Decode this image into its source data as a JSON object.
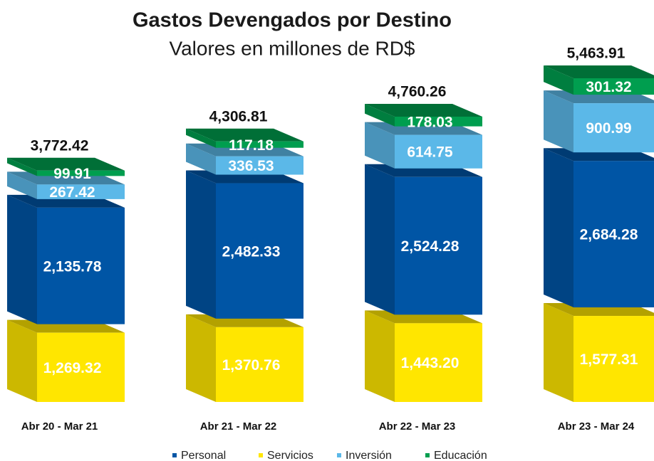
{
  "chart_data": {
    "type": "stacked-bar-3d",
    "title": "Gastos Devengados por Destino",
    "subtitle": "Valores en millones de RD$",
    "categories": [
      "Abr 20 - Mar 21",
      "Abr 21 - Mar 22",
      "Abr 22 - Mar 23",
      "Abr 23 - Mar 24"
    ],
    "series": [
      {
        "name": "Personal",
        "color": "#0055a5",
        "values": [
          2135.78,
          2482.33,
          2524.28,
          2684.28
        ],
        "value_labels": [
          "2,135.78",
          "2,482.33",
          "2,524.28",
          "2,684.28"
        ]
      },
      {
        "name": "Servicios",
        "color": "#ffe600",
        "values": [
          1269.32,
          1370.76,
          1443.2,
          1577.31
        ],
        "value_labels": [
          "1,269.32",
          "1,370.76",
          "1,443.20",
          "1,577.31"
        ]
      },
      {
        "name": "Inversión",
        "color": "#5bb8e8",
        "values": [
          267.42,
          336.53,
          614.75,
          900.99
        ],
        "value_labels": [
          "267.42",
          "336.53",
          "614.75",
          "900.99"
        ]
      },
      {
        "name": "Educación",
        "color": "#009e4f",
        "values": [
          99.91,
          117.18,
          178.03,
          301.32
        ],
        "value_labels": [
          "99.91",
          "117.18",
          "178.03",
          "301.32"
        ]
      }
    ],
    "totals": [
      3772.42,
      4306.81,
      4760.26,
      5463.91
    ],
    "total_labels": [
      "3,772.42",
      "4,306.81",
      "4,760.26",
      "5,463.91"
    ]
  }
}
